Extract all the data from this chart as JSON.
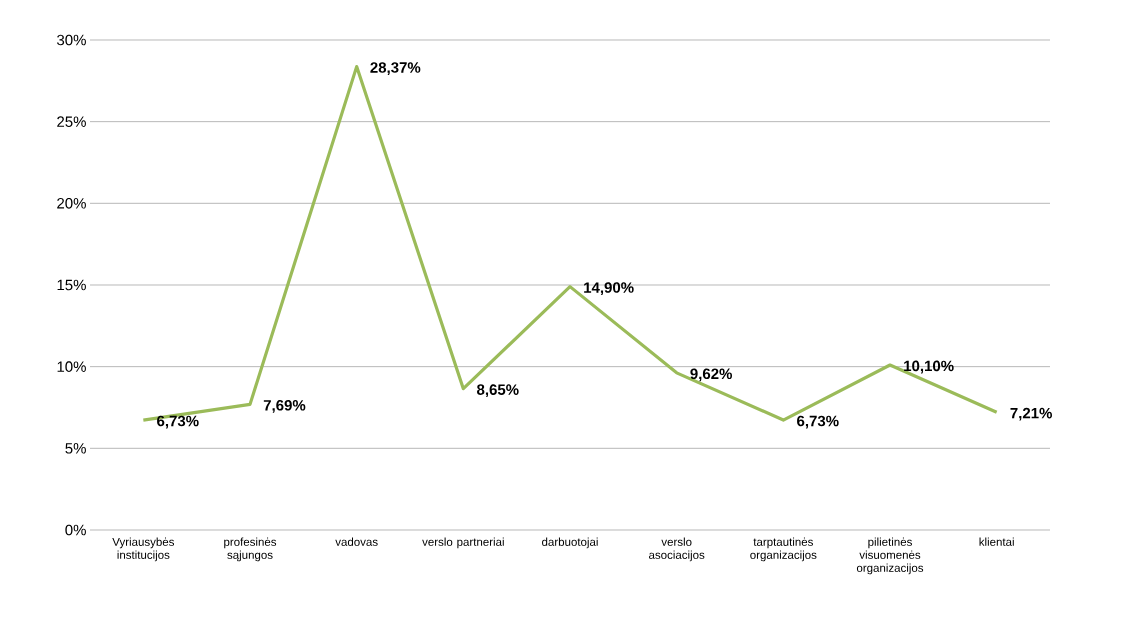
{
  "chart_data": {
    "type": "line",
    "categories": [
      "Vyriausybės institucijos",
      "profesinės sąjungos",
      "vadovas",
      "verslo partneriai",
      "darbuotojai",
      "verslo asociacijos",
      "tarptautinės organizacijos",
      "pilietinės visuomenės organizacijos",
      "klientai"
    ],
    "series": [
      {
        "color": "#9bbb59",
        "values": [
          6.73,
          7.69,
          28.37,
          8.65,
          14.9,
          9.62,
          6.73,
          10.1,
          7.21
        ],
        "value_labels": [
          "6,73%",
          "7,69%",
          "28,37%",
          "8,65%",
          "14,90%",
          "9,62%",
          "6,73%",
          "10,10%",
          "7,21%"
        ]
      }
    ],
    "ylim": [
      0,
      30
    ],
    "yticks": [
      {
        "value": 0,
        "label": "0%"
      },
      {
        "value": 5,
        "label": "5%"
      },
      {
        "value": 10,
        "label": "10%"
      },
      {
        "value": 15,
        "label": "15%"
      },
      {
        "value": 20,
        "label": "20%"
      },
      {
        "value": 25,
        "label": "25%"
      },
      {
        "value": 30,
        "label": "30%"
      }
    ],
    "grid": "y"
  }
}
